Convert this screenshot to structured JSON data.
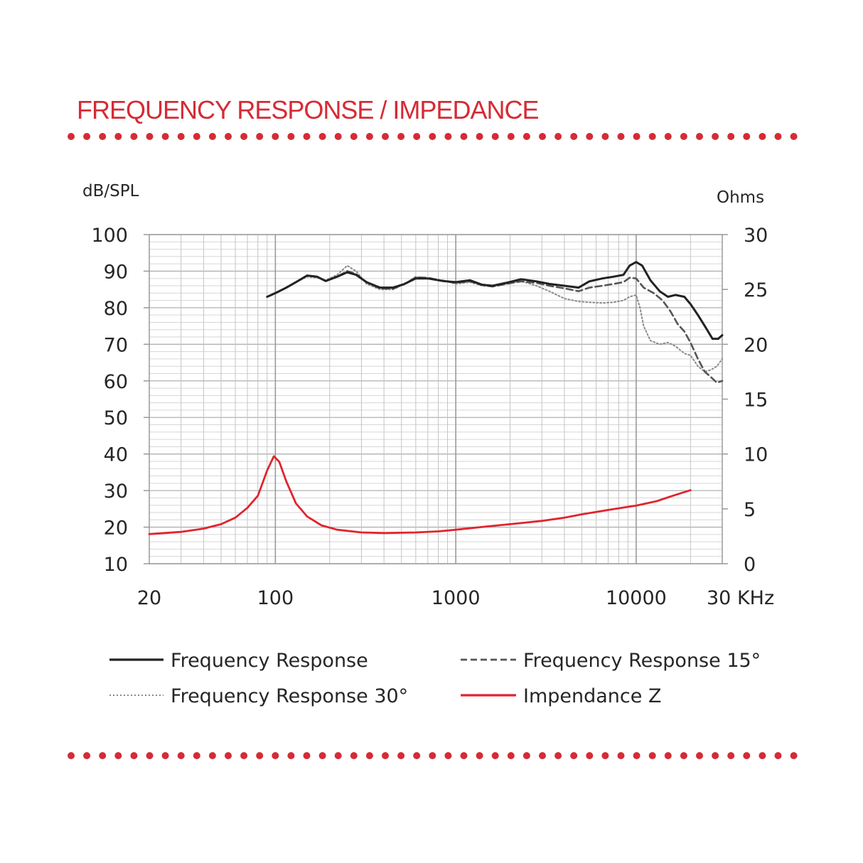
{
  "header": {
    "title": "FREQUENCY RESPONSE / IMPEDANCE"
  },
  "chart_data": {
    "type": "line",
    "title": "FREQUENCY RESPONSE / IMPEDANCE",
    "xscale": "log",
    "xlim": [
      20,
      30000
    ],
    "x_ticks": [
      {
        "value": 20,
        "label": "20"
      },
      {
        "value": 100,
        "label": "100"
      },
      {
        "value": 1000,
        "label": "1000"
      },
      {
        "value": 10000,
        "label": "10000"
      },
      {
        "value": 30000,
        "label": "30 KHz"
      }
    ],
    "ylabel_left": "dB/SPL",
    "ylim_left": [
      10,
      100
    ],
    "y_ticks_left": [
      "10",
      "20",
      "30",
      "40",
      "50",
      "60",
      "70",
      "80",
      "90",
      "100"
    ],
    "ylabel_right": "Ohms",
    "ylim_right": [
      0,
      30
    ],
    "y_ticks_right": [
      "0",
      "5",
      "10",
      "15",
      "20",
      "25",
      "30"
    ],
    "grid": true,
    "legend_position": "bottom",
    "series": [
      {
        "name": "Frequency Response",
        "axis": "left",
        "color": "#222222",
        "style": "solid",
        "points": [
          [
            90,
            83
          ],
          [
            100,
            84
          ],
          [
            115,
            85.5
          ],
          [
            130,
            87
          ],
          [
            150,
            88.8
          ],
          [
            170,
            88.5
          ],
          [
            190,
            87.3
          ],
          [
            220,
            88.5
          ],
          [
            250,
            89.7
          ],
          [
            280,
            89
          ],
          [
            320,
            87
          ],
          [
            380,
            85.5
          ],
          [
            450,
            85.5
          ],
          [
            520,
            86.5
          ],
          [
            600,
            88
          ],
          [
            700,
            88
          ],
          [
            850,
            87.3
          ],
          [
            1000,
            87
          ],
          [
            1200,
            87.5
          ],
          [
            1400,
            86.3
          ],
          [
            1600,
            86
          ],
          [
            1900,
            86.8
          ],
          [
            2300,
            87.8
          ],
          [
            2800,
            87.2
          ],
          [
            3300,
            86.5
          ],
          [
            4000,
            86
          ],
          [
            4800,
            85.5
          ],
          [
            5500,
            87.2
          ],
          [
            6500,
            88
          ],
          [
            7500,
            88.5
          ],
          [
            8500,
            89
          ],
          [
            9200,
            91.5
          ],
          [
            10000,
            92.5
          ],
          [
            10800,
            91.5
          ],
          [
            12000,
            87.5
          ],
          [
            13500,
            84.5
          ],
          [
            15000,
            83
          ],
          [
            16500,
            83.5
          ],
          [
            18500,
            83
          ],
          [
            20000,
            81
          ],
          [
            22000,
            78
          ],
          [
            24000,
            75
          ],
          [
            26500,
            71.5
          ],
          [
            28500,
            71.5
          ],
          [
            30000,
            72.5
          ]
        ]
      },
      {
        "name": "Frequency Response 15°",
        "axis": "left",
        "color": "#555555",
        "style": "dashed",
        "points": [
          [
            100,
            84
          ],
          [
            115,
            85.5
          ],
          [
            130,
            87
          ],
          [
            150,
            88.8
          ],
          [
            170,
            88.5
          ],
          [
            190,
            87.3
          ],
          [
            220,
            88.5
          ],
          [
            250,
            90
          ],
          [
            280,
            89.2
          ],
          [
            320,
            87
          ],
          [
            380,
            85.3
          ],
          [
            450,
            85.2
          ],
          [
            520,
            86.5
          ],
          [
            600,
            88.3
          ],
          [
            700,
            88.2
          ],
          [
            850,
            87.3
          ],
          [
            1000,
            86.8
          ],
          [
            1200,
            87.2
          ],
          [
            1400,
            86.2
          ],
          [
            1600,
            85.8
          ],
          [
            1900,
            86.5
          ],
          [
            2300,
            87.2
          ],
          [
            2800,
            86.8
          ],
          [
            3300,
            86
          ],
          [
            4000,
            85.3
          ],
          [
            4800,
            84.5
          ],
          [
            5500,
            85.5
          ],
          [
            6500,
            86
          ],
          [
            7500,
            86.5
          ],
          [
            8500,
            87
          ],
          [
            9200,
            88.2
          ],
          [
            10000,
            88
          ],
          [
            11000,
            85.5
          ],
          [
            12500,
            84
          ],
          [
            14000,
            82
          ],
          [
            15500,
            79
          ],
          [
            17000,
            75.5
          ],
          [
            18500,
            73.5
          ],
          [
            20000,
            70.5
          ],
          [
            22000,
            66
          ],
          [
            24000,
            62.5
          ],
          [
            26000,
            61
          ],
          [
            28000,
            59.5
          ],
          [
            30000,
            60
          ]
        ]
      },
      {
        "name": "Frequency Response 30°",
        "axis": "left",
        "color": "#8a8a8a",
        "style": "dotted",
        "points": [
          [
            100,
            84
          ],
          [
            115,
            85.5
          ],
          [
            130,
            87
          ],
          [
            150,
            88.5
          ],
          [
            170,
            88.2
          ],
          [
            190,
            87.5
          ],
          [
            220,
            89
          ],
          [
            250,
            91.5
          ],
          [
            280,
            90
          ],
          [
            320,
            86.5
          ],
          [
            380,
            85
          ],
          [
            450,
            85
          ],
          [
            520,
            86.5
          ],
          [
            600,
            88.5
          ],
          [
            700,
            88
          ],
          [
            850,
            87.5
          ],
          [
            1000,
            86.5
          ],
          [
            1200,
            87
          ],
          [
            1400,
            86
          ],
          [
            1600,
            85.8
          ],
          [
            1900,
            86.5
          ],
          [
            2300,
            87.3
          ],
          [
            2800,
            86
          ],
          [
            3300,
            84.5
          ],
          [
            4000,
            82.5
          ],
          [
            4800,
            81.7
          ],
          [
            5500,
            81.5
          ],
          [
            6500,
            81.3
          ],
          [
            7500,
            81.5
          ],
          [
            8500,
            82
          ],
          [
            9200,
            83
          ],
          [
            10000,
            83.5
          ],
          [
            10500,
            80
          ],
          [
            11000,
            75
          ],
          [
            12000,
            71
          ],
          [
            13500,
            70
          ],
          [
            15000,
            70.5
          ],
          [
            16500,
            69.5
          ],
          [
            18500,
            67.5
          ],
          [
            20000,
            67
          ],
          [
            22000,
            64
          ],
          [
            24000,
            62.5
          ],
          [
            26000,
            63
          ],
          [
            28000,
            64
          ],
          [
            30000,
            66
          ]
        ]
      },
      {
        "name": "Impendance Z",
        "axis": "right",
        "color": "#e0242e",
        "style": "solid",
        "points": [
          [
            20,
            2.7
          ],
          [
            30,
            2.9
          ],
          [
            40,
            3.2
          ],
          [
            50,
            3.6
          ],
          [
            60,
            4.2
          ],
          [
            70,
            5.1
          ],
          [
            80,
            6.2
          ],
          [
            90,
            8.5
          ],
          [
            98,
            9.8
          ],
          [
            105,
            9.3
          ],
          [
            115,
            7.5
          ],
          [
            130,
            5.5
          ],
          [
            150,
            4.3
          ],
          [
            180,
            3.5
          ],
          [
            220,
            3.1
          ],
          [
            300,
            2.85
          ],
          [
            400,
            2.8
          ],
          [
            600,
            2.85
          ],
          [
            800,
            2.95
          ],
          [
            1000,
            3.1
          ],
          [
            1500,
            3.4
          ],
          [
            2000,
            3.6
          ],
          [
            3000,
            3.9
          ],
          [
            4000,
            4.2
          ],
          [
            5000,
            4.5
          ],
          [
            7000,
            4.9
          ],
          [
            10000,
            5.3
          ],
          [
            13000,
            5.7
          ],
          [
            16000,
            6.2
          ],
          [
            20000,
            6.7
          ]
        ]
      }
    ]
  },
  "legend": [
    {
      "label": "Frequency Response",
      "color": "#222222",
      "style": "solid"
    },
    {
      "label": "Frequency Response 15°",
      "color": "#555555",
      "style": "dashed"
    },
    {
      "label": "Frequency Response 30°",
      "color": "#8a8a8a",
      "style": "dotted"
    },
    {
      "label": "Impendance Z",
      "color": "#e0242e",
      "style": "solid"
    }
  ],
  "accent_color": "#d52b35"
}
